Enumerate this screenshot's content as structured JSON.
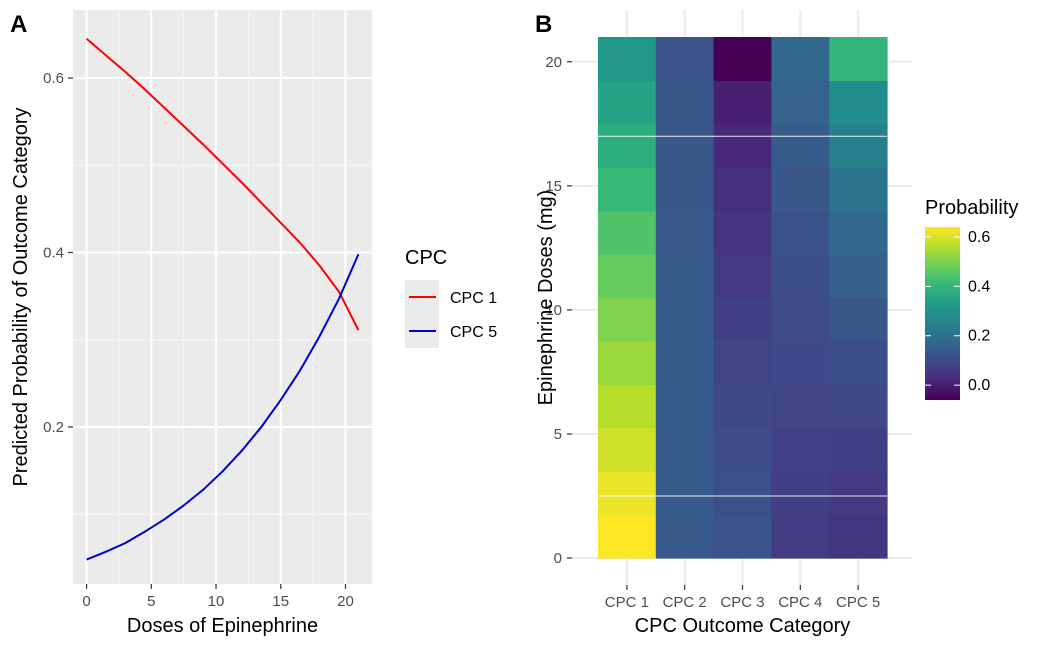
{
  "chart_data": [
    {
      "panel": "A",
      "type": "line",
      "xlabel": "Doses of Epinephrine",
      "ylabel": "Predicted Probability of Outcome Category",
      "xlim": [
        -1.05,
        22.05
      ],
      "ylim": [
        0.02,
        0.678
      ],
      "xticks": [
        0,
        5,
        10,
        15,
        20
      ],
      "yticks": [
        0.2,
        0.4,
        0.6
      ],
      "ytick_labels": [
        "0.2",
        "0.4",
        "0.6"
      ],
      "grid": true,
      "legend": {
        "title": "CPC",
        "position": "right"
      },
      "series": [
        {
          "name": "CPC 1",
          "color": "#ff0000",
          "x": [
            0,
            1.5,
            3,
            4.5,
            6,
            7.5,
            9,
            10.5,
            12,
            13.5,
            15,
            16.5,
            18,
            19.5,
            21
          ],
          "y": [
            0.645,
            0.626,
            0.607,
            0.587,
            0.566,
            0.545,
            0.524,
            0.502,
            0.48,
            0.457,
            0.434,
            0.411,
            0.385,
            0.355,
            0.311
          ]
        },
        {
          "name": "CPC 5",
          "color": "#0000cc",
          "x": [
            0,
            1.5,
            3,
            4.5,
            6,
            7.5,
            9,
            10.5,
            12,
            13.5,
            15,
            16.5,
            18,
            19.5,
            21
          ],
          "y": [
            0.048,
            0.057,
            0.067,
            0.08,
            0.094,
            0.11,
            0.128,
            0.149,
            0.173,
            0.2,
            0.231,
            0.265,
            0.304,
            0.347,
            0.398
          ]
        }
      ]
    },
    {
      "panel": "B",
      "type": "heatmap",
      "xlabel": "CPC Outcome Category",
      "ylabel": "Epinephrine Doses (mg)",
      "categories": [
        "CPC 1",
        "CPC 2",
        "CPC 3",
        "CPC 4",
        "CPC 5"
      ],
      "ylim": [
        0,
        21
      ],
      "yticks": [
        0,
        5,
        10,
        15,
        20
      ],
      "legend": {
        "title": "Probability",
        "position": "right",
        "range": [
          -0.06,
          0.64
        ],
        "ticks": [
          "0.0",
          "0.2",
          "0.4",
          "0.6"
        ],
        "tick_values": [
          0.0,
          0.2,
          0.4,
          0.6
        ]
      },
      "values": [
        [
          0.645,
          0.619,
          0.59,
          0.562,
          0.532,
          0.502,
          0.473,
          0.443,
          0.411,
          0.38,
          0.349,
          0.311
        ],
        [
          0.135,
          0.136,
          0.137,
          0.137,
          0.137,
          0.137,
          0.136,
          0.135,
          0.133,
          0.13,
          0.126,
          0.122
        ],
        [
          0.12,
          0.112,
          0.103,
          0.093,
          0.083,
          0.072,
          0.06,
          0.047,
          0.033,
          0.018,
          0.003,
          -0.06
        ],
        [
          0.065,
          0.07,
          0.076,
          0.083,
          0.09,
          0.098,
          0.107,
          0.117,
          0.128,
          0.141,
          0.155,
          0.17
        ],
        [
          0.048,
          0.06,
          0.073,
          0.088,
          0.106,
          0.126,
          0.15,
          0.176,
          0.206,
          0.241,
          0.28,
          0.398
        ]
      ]
    }
  ]
}
